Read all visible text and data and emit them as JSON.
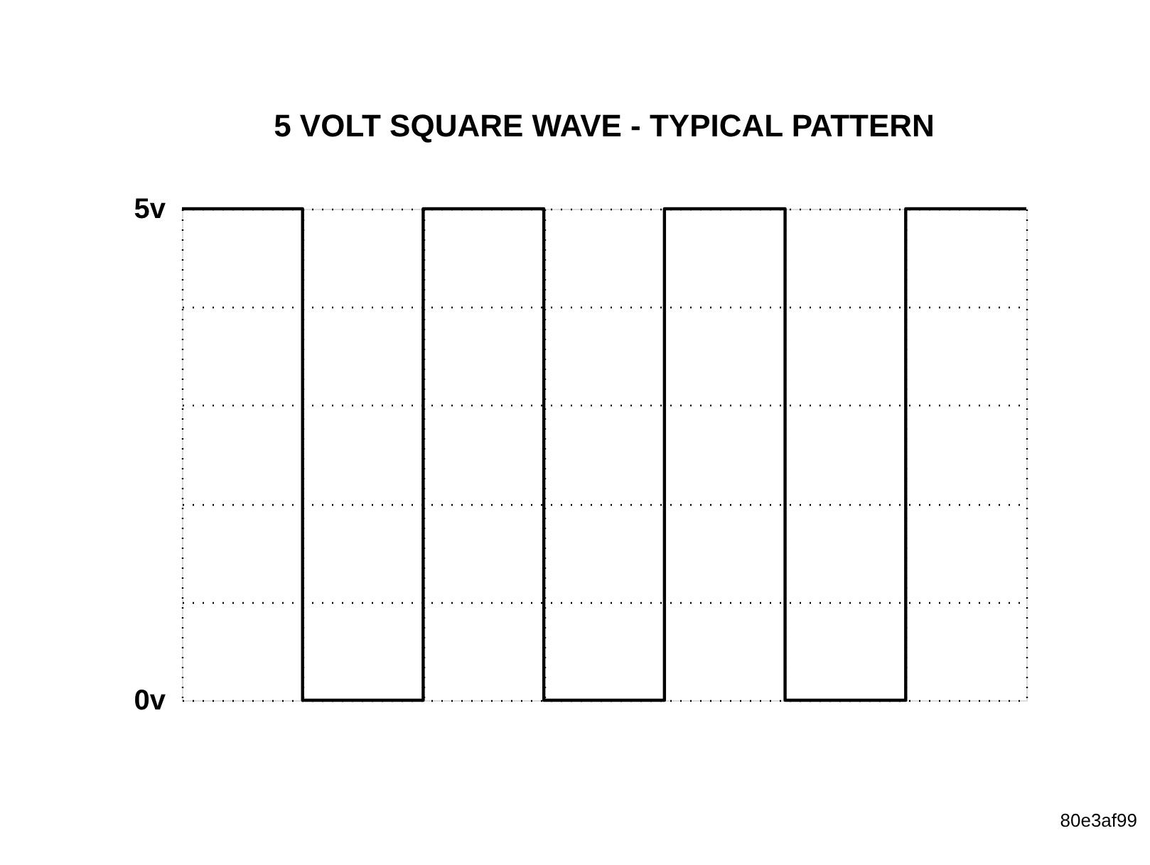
{
  "chart_data": {
    "type": "step",
    "title": "5 VOLT SQUARE WAVE - TYPICAL PATTERN",
    "categories": [
      null,
      null,
      null,
      null,
      null,
      null,
      null,
      null
    ],
    "series": [
      {
        "color": "#000000",
        "values": [
          5,
          0,
          5,
          0,
          5,
          0,
          5,
          5
        ]
      }
    ],
    "ylim": [
      0,
      5
    ],
    "yticks": [
      {
        "value": 0,
        "label": "0v"
      },
      {
        "value": 1,
        "label": null
      },
      {
        "value": 2,
        "label": null
      },
      {
        "value": 3,
        "label": null
      },
      {
        "value": 4,
        "label": null
      },
      {
        "value": 5,
        "label": "5v"
      }
    ],
    "grid": true,
    "line_style": "solid",
    "tick_labels": "y",
    "annotations": [
      "80e3af99"
    ]
  }
}
